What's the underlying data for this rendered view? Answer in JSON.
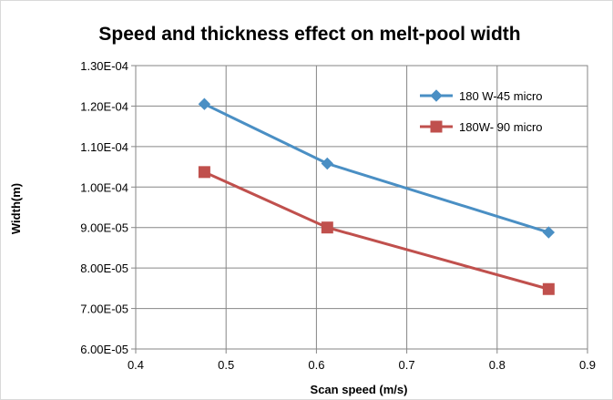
{
  "chart_data": {
    "type": "line",
    "title": "Speed and thickness effect on melt-pool width",
    "xlabel": "Scan speed (m/s)",
    "ylabel": "Width(m)",
    "xlim": [
      0.4,
      0.9
    ],
    "ylim": [
      6e-05,
      0.00013
    ],
    "x_ticks": [
      0.4,
      0.5,
      0.6,
      0.7,
      0.8,
      0.9
    ],
    "x_tick_labels": [
      "0.4",
      "0.5",
      "0.6",
      "0.7",
      "0.8",
      "0.9"
    ],
    "y_ticks": [
      6e-05,
      7e-05,
      8e-05,
      9e-05,
      0.0001,
      0.00011,
      0.00012,
      0.00013
    ],
    "y_tick_labels": [
      "6.00E-05",
      "7.00E-05",
      "8.00E-05",
      "9.00E-05",
      "1.00E-04",
      "1.10E-04",
      "1.20E-04",
      "1.30E-04"
    ],
    "grid": true,
    "legend_position": "top-right",
    "series": [
      {
        "name": "180 W-45 micro",
        "color": "#4a8fc4",
        "marker": "diamond",
        "x": [
          0.476,
          0.612,
          0.857
        ],
        "y": [
          0.0001205,
          0.0001058,
          8.88e-05
        ]
      },
      {
        "name": "180W- 90 micro",
        "color": "#c0504d",
        "marker": "square",
        "x": [
          0.476,
          0.612,
          0.857
        ],
        "y": [
          0.0001037,
          9e-05,
          7.48e-05
        ]
      }
    ]
  }
}
